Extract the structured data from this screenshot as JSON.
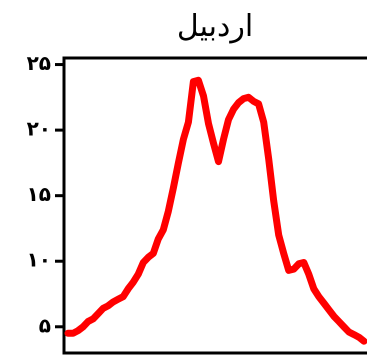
{
  "chart_data": {
    "type": "line",
    "title": "اردبیل",
    "xlabel": "",
    "ylabel": "",
    "ylim": [
      3,
      25.5
    ],
    "yticks": [
      5,
      10,
      15,
      20,
      25
    ],
    "ytick_labels": [
      "۵",
      "۱۰",
      "۱۵",
      "۲۰",
      "۲۵"
    ],
    "grid": false,
    "series": [
      {
        "color": "#ff0000",
        "values": [
          4.5,
          4.5,
          4.7,
          5.0,
          5.4,
          5.6,
          6.0,
          6.4,
          6.6,
          6.9,
          7.1,
          7.3,
          7.9,
          8.4,
          9.0,
          9.9,
          10.3,
          10.6,
          11.7,
          12.4,
          13.8,
          15.6,
          17.5,
          19.3,
          20.6,
          23.7,
          23.8,
          22.6,
          20.5,
          19.0,
          17.6,
          19.3,
          20.8,
          21.6,
          22.1,
          22.4,
          22.5,
          22.2,
          22.0,
          20.6,
          17.8,
          14.6,
          12.0,
          10.6,
          9.3,
          9.4,
          9.8,
          9.9,
          9.0,
          7.9,
          7.3,
          6.8,
          6.3,
          5.8,
          5.4,
          5.0,
          4.6,
          4.4,
          4.2,
          3.9
        ]
      }
    ]
  }
}
